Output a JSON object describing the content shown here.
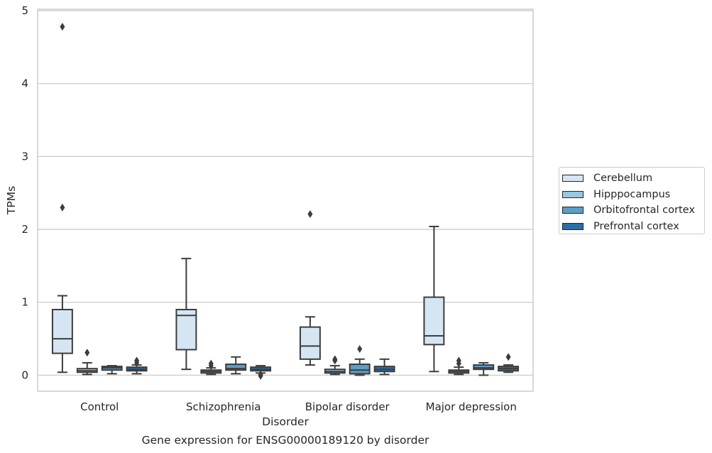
{
  "caption": "Gene expression for ENSG00000189120 by disorder",
  "chart_data": {
    "type": "box",
    "xlabel": "Disorder",
    "ylabel": "TPMs",
    "ylim": [
      -0.22,
      5.02
    ],
    "yticks": [
      0,
      1,
      2,
      3,
      4,
      5
    ],
    "grid": "y",
    "legend_position": "right",
    "categories": [
      "Control",
      "Schizophrenia",
      "Bipolar disorder",
      "Major depression"
    ],
    "series": [
      {
        "name": "Cerebellum",
        "color": "#d6e5f4",
        "boxes": [
          {
            "whisker_low": 0.04,
            "q1": 0.3,
            "median": 0.5,
            "q3": 0.9,
            "whisker_high": 1.09,
            "outliers": [
              2.3,
              4.78
            ]
          },
          {
            "whisker_low": 0.08,
            "q1": 0.35,
            "median": 0.82,
            "q3": 0.9,
            "whisker_high": 1.6,
            "outliers": []
          },
          {
            "whisker_low": 0.14,
            "q1": 0.22,
            "median": 0.4,
            "q3": 0.66,
            "whisker_high": 0.8,
            "outliers": [
              2.21
            ]
          },
          {
            "whisker_low": 0.05,
            "q1": 0.42,
            "median": 0.54,
            "q3": 1.07,
            "whisker_high": 2.04,
            "outliers": []
          }
        ]
      },
      {
        "name": "Hipppocampus",
        "color": "#9ac7e1",
        "boxes": [
          {
            "whisker_low": 0.01,
            "q1": 0.04,
            "median": 0.06,
            "q3": 0.09,
            "whisker_high": 0.17,
            "outliers": [
              0.31
            ]
          },
          {
            "whisker_low": 0.01,
            "q1": 0.03,
            "median": 0.05,
            "q3": 0.07,
            "whisker_high": 0.1,
            "outliers": [
              0.13,
              0.16
            ]
          },
          {
            "whisker_low": 0.01,
            "q1": 0.03,
            "median": 0.05,
            "q3": 0.08,
            "whisker_high": 0.13,
            "outliers": [
              0.2,
              0.22
            ]
          },
          {
            "whisker_low": 0.01,
            "q1": 0.03,
            "median": 0.05,
            "q3": 0.07,
            "whisker_high": 0.11,
            "outliers": [
              0.16,
              0.2
            ]
          }
        ]
      },
      {
        "name": "Orbitofrontal cortex",
        "color": "#5b9ec9",
        "boxes": [
          {
            "whisker_low": 0.02,
            "q1": 0.07,
            "median": 0.1,
            "q3": 0.12,
            "whisker_high": 0.13,
            "outliers": []
          },
          {
            "whisker_low": 0.02,
            "q1": 0.07,
            "median": 0.09,
            "q3": 0.15,
            "whisker_high": 0.25,
            "outliers": []
          },
          {
            "whisker_low": 0.0,
            "q1": 0.02,
            "median": 0.07,
            "q3": 0.15,
            "whisker_high": 0.22,
            "outliers": [
              0.36
            ]
          },
          {
            "whisker_low": 0.0,
            "q1": 0.08,
            "median": 0.1,
            "q3": 0.14,
            "whisker_high": 0.17,
            "outliers": []
          }
        ]
      },
      {
        "name": "Prefrontal cortex",
        "color": "#2b6ea8",
        "boxes": [
          {
            "whisker_low": 0.02,
            "q1": 0.06,
            "median": 0.08,
            "q3": 0.11,
            "whisker_high": 0.14,
            "outliers": [
              0.17,
              0.2
            ]
          },
          {
            "whisker_low": 0.03,
            "q1": 0.06,
            "median": 0.08,
            "q3": 0.11,
            "whisker_high": 0.13,
            "outliers": [
              -0.01,
              0.01
            ]
          },
          {
            "whisker_low": 0.01,
            "q1": 0.05,
            "median": 0.08,
            "q3": 0.12,
            "whisker_high": 0.22,
            "outliers": []
          },
          {
            "whisker_low": 0.04,
            "q1": 0.06,
            "median": 0.09,
            "q3": 0.12,
            "whisker_high": 0.14,
            "outliers": [
              0.25
            ]
          }
        ]
      }
    ]
  }
}
